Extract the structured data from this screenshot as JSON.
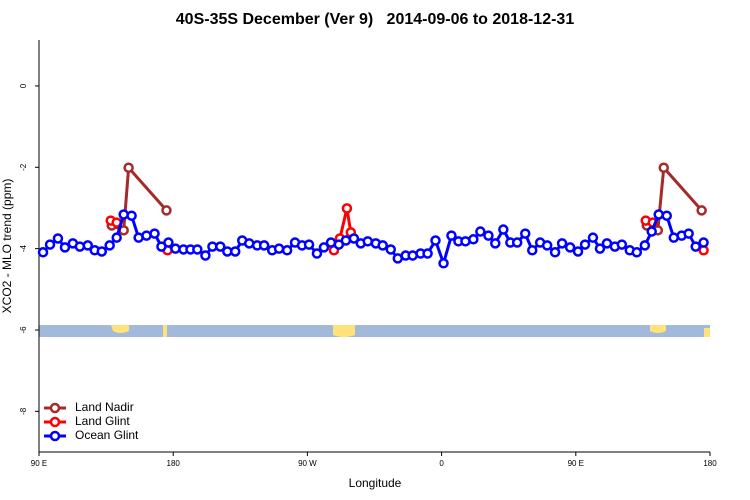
{
  "chart_data": {
    "type": "line",
    "title": "40S-35S December (Ver 9)   2014-09-06 to 2018-12-31",
    "xlabel": "Longitude",
    "ylabel": "XCO2 - MLO trend (ppm)",
    "xlim": [
      90,
      540
    ],
    "xticks": [
      {
        "value": 90,
        "label": "90 E"
      },
      180,
      {
        "value": 270,
        "label": "90 W"
      },
      {
        "value": 360,
        "label": "0"
      },
      {
        "value": 450,
        "label": "90 E"
      },
      {
        "value": 540,
        "label": "180"
      }
    ],
    "ylim": [
      -9,
      1.13
    ],
    "yticks": [
      0,
      -2,
      -4,
      -6,
      -8
    ],
    "legend": "bottomleft",
    "series": [
      {
        "name": "Land Nadir",
        "color": "#a52a2a",
        "x": [
          138.8,
          146.8,
          150.1,
          175.5,
          null,
          497.6,
          505.0,
          509.0,
          534.4
        ],
        "values": [
          -3.43,
          -3.55,
          -2.01,
          -3.06,
          null,
          -3.43,
          -3.55,
          -2.01,
          -3.06
        ]
      },
      {
        "name": "Land Glint",
        "color": "#ff0000",
        "x": [
          138.1,
          142.1,
          null,
          176.2,
          null,
          287.8,
          291.8,
          296.5,
          299.1,
          null,
          496.9,
          501.6,
          null,
          535.7
        ],
        "values": [
          -3.31,
          -3.36,
          null,
          -4.04,
          null,
          -4.04,
          -3.75,
          -3.01,
          -3.6,
          null,
          -3.31,
          -3.36,
          null,
          -4.04
        ]
      },
      {
        "name": "Ocean Glint",
        "color": "#0000ff",
        "x": [
          92.7,
          97.4,
          102.7,
          107.4,
          112.7,
          117.4,
          122.7,
          127.4,
          132.1,
          137.4,
          142.1,
          146.8,
          152.1,
          156.8,
          162.1,
          167.5,
          172.1,
          176.8,
          181.5,
          186.9,
          191.6,
          196.2,
          201.6,
          206.3,
          211.6,
          216.3,
          221.6,
          226.3,
          231.0,
          236.3,
          241.0,
          246.4,
          251.0,
          256.4,
          261.7,
          266.4,
          271.1,
          276.4,
          281.1,
          285.8,
          291.1,
          295.8,
          301.2,
          305.8,
          310.5,
          315.9,
          320.5,
          325.9,
          330.6,
          335.9,
          340.6,
          345.9,
          350.6,
          355.9,
          361.3,
          366.6,
          371.3,
          376.0,
          381.3,
          386.0,
          391.4,
          396.0,
          401.4,
          406.1,
          410.7,
          416.1,
          420.8,
          426.1,
          430.8,
          436.1,
          440.8,
          446.2,
          451.5,
          456.2,
          461.5,
          466.2,
          470.9,
          476.2,
          480.9,
          486.2,
          490.9,
          496.3,
          500.9,
          505.6,
          511.0,
          515.7,
          521.0,
          525.7,
          530.4,
          535.7
        ],
        "values": [
          -4.09,
          -3.9,
          -3.75,
          -3.97,
          -3.87,
          -3.95,
          -3.92,
          -4.04,
          -4.07,
          -3.92,
          -3.73,
          -3.16,
          -3.19,
          -3.73,
          -3.68,
          -3.63,
          -3.95,
          -3.85,
          -4.0,
          -4.02,
          -4.02,
          -4.02,
          -4.17,
          -3.95,
          -3.95,
          -4.07,
          -4.07,
          -3.8,
          -3.87,
          -3.92,
          -3.92,
          -4.04,
          -4.0,
          -4.04,
          -3.85,
          -3.92,
          -3.9,
          -4.12,
          -3.97,
          -3.85,
          -3.9,
          -3.8,
          -3.75,
          -3.87,
          -3.82,
          -3.87,
          -3.92,
          -4.02,
          -4.24,
          -4.17,
          -4.17,
          -4.12,
          -4.12,
          -3.8,
          -4.36,
          -3.68,
          -3.82,
          -3.82,
          -3.77,
          -3.58,
          -3.68,
          -3.87,
          -3.53,
          -3.85,
          -3.85,
          -3.63,
          -4.04,
          -3.85,
          -3.92,
          -4.09,
          -3.87,
          -3.97,
          -4.07,
          -3.9,
          -3.73,
          -4.0,
          -3.87,
          -3.95,
          -3.9,
          -4.04,
          -4.09,
          -3.92,
          -3.58,
          -3.16,
          -3.19,
          -3.73,
          -3.68,
          -3.63,
          -3.95,
          -3.85
        ]
      }
    ]
  }
}
